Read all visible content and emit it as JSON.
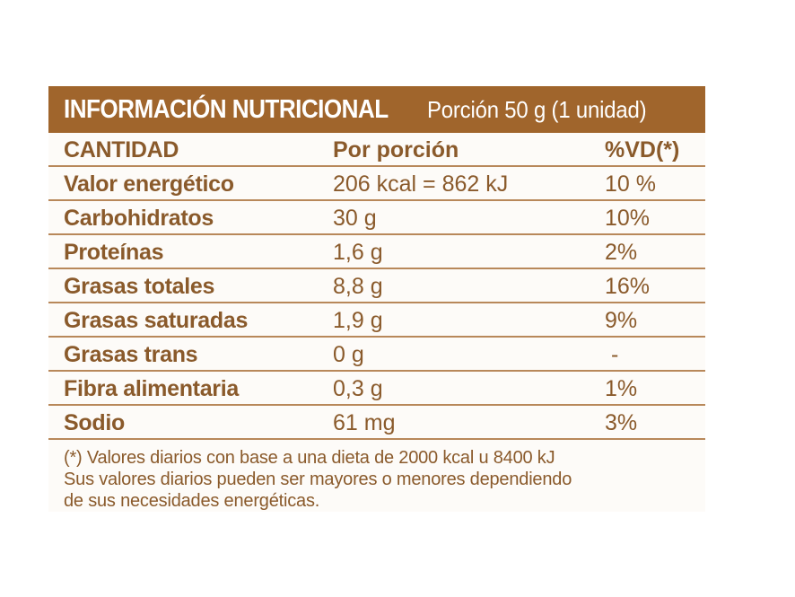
{
  "header": {
    "title": "INFORMACIÓN NUTRICIONAL",
    "portion": "Porción 50 g (1 unidad)"
  },
  "columns": {
    "col1": "CANTIDAD",
    "col2": "Por porción",
    "col3": "%VD(*)"
  },
  "rows": [
    {
      "name": "Valor energético",
      "amount": "206 kcal = 862 kJ",
      "dv": "10 %"
    },
    {
      "name": "Carbohidratos",
      "amount": "30 g",
      "dv": "10%"
    },
    {
      "name": "Proteínas",
      "amount": "1,6 g",
      "dv": "2%"
    },
    {
      "name": "Grasas totales",
      "amount": "8,8 g",
      "dv": "16%"
    },
    {
      "name": "Grasas saturadas",
      "amount": "1,9 g",
      "dv": "9%"
    },
    {
      "name": "Grasas trans",
      "amount": "0 g",
      "dv": "-"
    },
    {
      "name": "Fibra alimentaria",
      "amount": "0,3 g",
      "dv": "1%"
    },
    {
      "name": "Sodio",
      "amount": "61 mg",
      "dv": "3%"
    }
  ],
  "footnote": [
    "(*) Valores diarios con base a una dieta de 2000 kcal u 8400 kJ",
    "Sus valores diarios pueden ser mayores o menores dependiendo",
    "de sus necesidades energéticas."
  ],
  "colors": {
    "header_bg": "#a0652c",
    "text": "#8a5a2b",
    "rule": "#b8885a"
  }
}
